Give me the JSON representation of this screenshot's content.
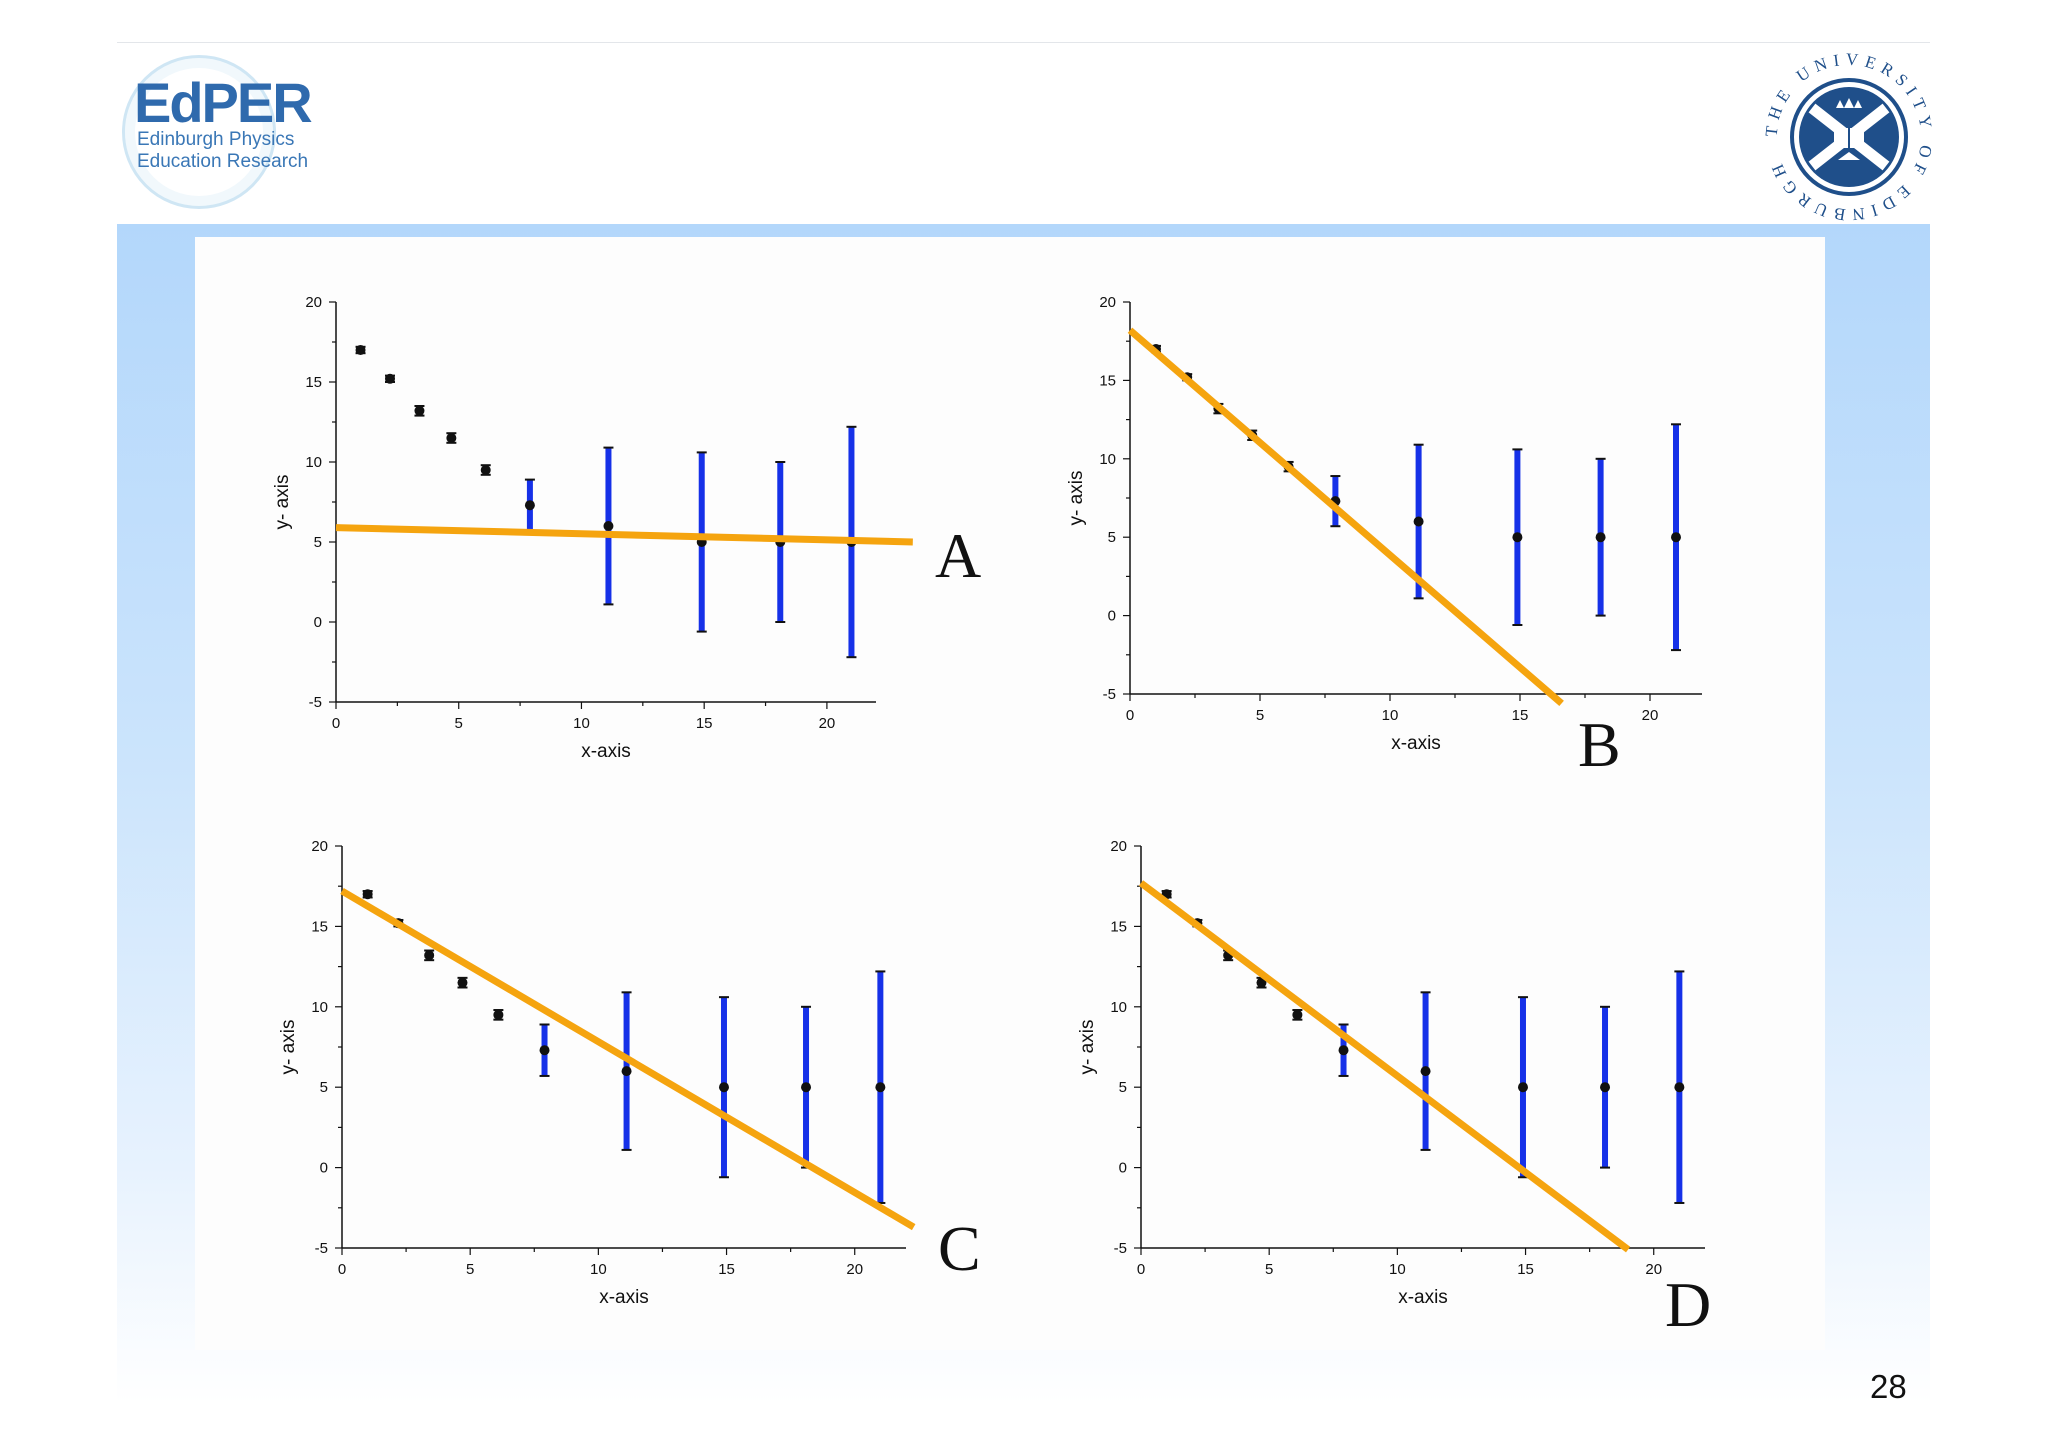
{
  "header": {
    "logo_left": {
      "title": "EdPER",
      "line1": "Edinburgh Physics",
      "line2": "Education Research"
    },
    "logo_right": {
      "text": "THE UNIVERSITY OF EDINBURGH"
    }
  },
  "page_number": "28",
  "colors": {
    "fit_line": "#f5a40f",
    "error_bar": "#1631e8",
    "point": "#111111",
    "band": "#b3d7fb"
  },
  "chart_data": [
    {
      "type": "scatter",
      "label": "A",
      "xlabel": "x-axis",
      "ylabel": "y- axis",
      "xlim": [
        0,
        22
      ],
      "ylim": [
        -5,
        20
      ],
      "xticks": [
        0,
        5,
        10,
        15,
        20
      ],
      "yticks": [
        -5,
        0,
        5,
        10,
        15,
        20
      ],
      "points": [
        {
          "x": 1,
          "y": 17,
          "err": 0.2
        },
        {
          "x": 2.2,
          "y": 15.2,
          "err": 0.2
        },
        {
          "x": 3.4,
          "y": 13.2,
          "err": 0.3
        },
        {
          "x": 4.7,
          "y": 11.5,
          "err": 0.3
        },
        {
          "x": 6.1,
          "y": 9.5,
          "err": 0.3
        },
        {
          "x": 7.9,
          "y": 7.3,
          "err": 1.6
        },
        {
          "x": 11.1,
          "y": 6.0,
          "err": 4.9
        },
        {
          "x": 14.9,
          "y": 5.0,
          "err": 5.6
        },
        {
          "x": 18.1,
          "y": 5.0,
          "err": 5.0
        },
        {
          "x": 21.0,
          "y": 5.0,
          "err": 7.2
        }
      ],
      "fit_line": {
        "x1": 0,
        "y1": 5.9,
        "x2": 23.5,
        "y2": 5.0
      }
    },
    {
      "type": "scatter",
      "label": "B",
      "xlabel": "x-axis",
      "ylabel": "y- axis",
      "xlim": [
        0,
        22
      ],
      "ylim": [
        -5,
        20
      ],
      "xticks": [
        0,
        5,
        10,
        15,
        20
      ],
      "yticks": [
        -5,
        0,
        5,
        10,
        15,
        20
      ],
      "points": [
        {
          "x": 1,
          "y": 17,
          "err": 0.2
        },
        {
          "x": 2.2,
          "y": 15.2,
          "err": 0.2
        },
        {
          "x": 3.4,
          "y": 13.2,
          "err": 0.3
        },
        {
          "x": 4.7,
          "y": 11.5,
          "err": 0.3
        },
        {
          "x": 6.1,
          "y": 9.5,
          "err": 0.3
        },
        {
          "x": 7.9,
          "y": 7.3,
          "err": 1.6
        },
        {
          "x": 11.1,
          "y": 6.0,
          "err": 4.9
        },
        {
          "x": 14.9,
          "y": 5.0,
          "err": 5.6
        },
        {
          "x": 18.1,
          "y": 5.0,
          "err": 5.0
        },
        {
          "x": 21.0,
          "y": 5.0,
          "err": 7.2
        }
      ],
      "fit_line": {
        "x1": 0,
        "y1": 18.2,
        "x2": 16.6,
        "y2": -5.6
      }
    },
    {
      "type": "scatter",
      "label": "C",
      "xlabel": "x-axis",
      "ylabel": "y- axis",
      "xlim": [
        0,
        22
      ],
      "ylim": [
        -5,
        20
      ],
      "xticks": [
        0,
        5,
        10,
        15,
        20
      ],
      "yticks": [
        -5,
        0,
        5,
        10,
        15,
        20
      ],
      "points": [
        {
          "x": 1,
          "y": 17,
          "err": 0.2
        },
        {
          "x": 2.2,
          "y": 15.2,
          "err": 0.2
        },
        {
          "x": 3.4,
          "y": 13.2,
          "err": 0.3
        },
        {
          "x": 4.7,
          "y": 11.5,
          "err": 0.3
        },
        {
          "x": 6.1,
          "y": 9.5,
          "err": 0.3
        },
        {
          "x": 7.9,
          "y": 7.3,
          "err": 1.6
        },
        {
          "x": 11.1,
          "y": 6.0,
          "err": 4.9
        },
        {
          "x": 14.9,
          "y": 5.0,
          "err": 5.6
        },
        {
          "x": 18.1,
          "y": 5.0,
          "err": 5.0
        },
        {
          "x": 21.0,
          "y": 5.0,
          "err": 7.2
        }
      ],
      "fit_line": {
        "x1": 0,
        "y1": 17.2,
        "x2": 22.3,
        "y2": -3.7
      }
    },
    {
      "type": "scatter",
      "label": "D",
      "xlabel": "x-axis",
      "ylabel": "y- axis",
      "xlim": [
        0,
        22
      ],
      "ylim": [
        -5,
        20
      ],
      "xticks": [
        0,
        5,
        10,
        15,
        20
      ],
      "yticks": [
        -5,
        0,
        5,
        10,
        15,
        20
      ],
      "points": [
        {
          "x": 1,
          "y": 17,
          "err": 0.2
        },
        {
          "x": 2.2,
          "y": 15.2,
          "err": 0.2
        },
        {
          "x": 3.4,
          "y": 13.2,
          "err": 0.3
        },
        {
          "x": 4.7,
          "y": 11.5,
          "err": 0.3
        },
        {
          "x": 6.1,
          "y": 9.5,
          "err": 0.3
        },
        {
          "x": 7.9,
          "y": 7.3,
          "err": 1.6
        },
        {
          "x": 11.1,
          "y": 6.0,
          "err": 4.9
        },
        {
          "x": 14.9,
          "y": 5.0,
          "err": 5.6
        },
        {
          "x": 18.1,
          "y": 5.0,
          "err": 5.0
        },
        {
          "x": 21.0,
          "y": 5.0,
          "err": 7.2
        }
      ],
      "fit_line": {
        "x1": 0,
        "y1": 17.7,
        "x2": 19.0,
        "y2": -5.1
      }
    }
  ]
}
